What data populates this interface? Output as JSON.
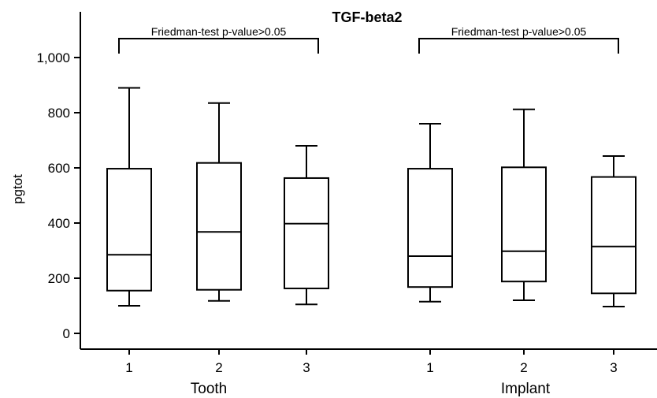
{
  "chart_data": {
    "type": "boxplot",
    "title": "TGF-beta2",
    "ylabel": "pgtot",
    "ylim": [
      -50,
      1150
    ],
    "yticks": [
      0,
      200,
      400,
      600,
      800,
      1000
    ],
    "ytick_labels": [
      "0",
      "200",
      "400",
      "600",
      "800",
      "1,000"
    ],
    "groups": [
      {
        "name": "Tooth",
        "annotation": "Friedman-test p-value>0.05",
        "boxes": [
          {
            "label": "1",
            "min": 100,
            "q1": 155,
            "median": 285,
            "q3": 597,
            "max": 890
          },
          {
            "label": "2",
            "min": 118,
            "q1": 158,
            "median": 368,
            "q3": 618,
            "max": 835
          },
          {
            "label": "3",
            "min": 105,
            "q1": 163,
            "median": 398,
            "q3": 563,
            "max": 680
          }
        ]
      },
      {
        "name": "Implant",
        "annotation": "Friedman-test p-value>0.05",
        "boxes": [
          {
            "label": "1",
            "min": 115,
            "q1": 168,
            "median": 280,
            "q3": 597,
            "max": 760
          },
          {
            "label": "2",
            "min": 120,
            "q1": 188,
            "median": 298,
            "q3": 602,
            "max": 812
          },
          {
            "label": "3",
            "min": 97,
            "q1": 145,
            "median": 315,
            "q3": 567,
            "max": 643
          }
        ]
      }
    ],
    "grid": false
  }
}
